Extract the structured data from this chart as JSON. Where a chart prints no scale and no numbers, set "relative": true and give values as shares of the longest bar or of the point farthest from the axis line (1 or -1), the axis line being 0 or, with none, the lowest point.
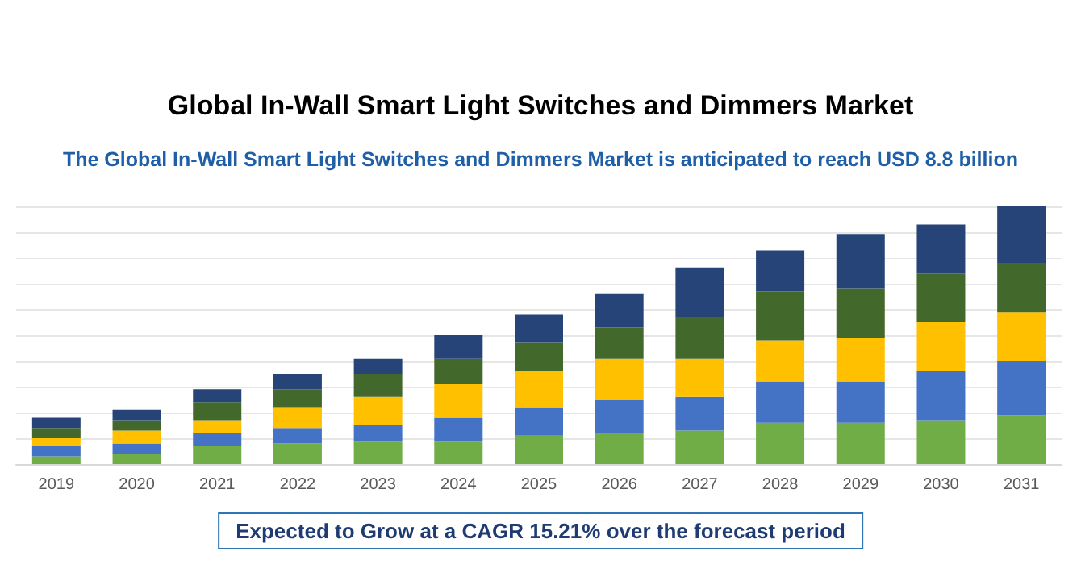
{
  "chart_data": {
    "type": "bar",
    "stacked": true,
    "relative": true,
    "grid": "y",
    "title": "Global In-Wall Smart Light Switches and Dimmers Market",
    "subtitle": "The Global In-Wall Smart Light Switches and Dimmers Market is anticipated to reach USD 8.8 billion",
    "annotations": [
      "Expected to Grow at a CAGR 15.21% over the forecast period"
    ],
    "categories": [
      "2019",
      "2020",
      "2021",
      "2022",
      "2023",
      "2024",
      "2025",
      "2026",
      "2027",
      "2028",
      "2029",
      "2030",
      "2031"
    ],
    "series": [
      {
        "color": "#70ad47",
        "values": [
          0.03,
          0.04,
          0.07,
          0.08,
          0.09,
          0.09,
          0.11,
          0.12,
          0.13,
          0.16,
          0.16,
          0.17,
          0.19
        ]
      },
      {
        "color": "#4472c4",
        "values": [
          0.04,
          0.04,
          0.05,
          0.06,
          0.06,
          0.09,
          0.11,
          0.13,
          0.13,
          0.16,
          0.16,
          0.19,
          0.21
        ]
      },
      {
        "color": "#ffc000",
        "values": [
          0.03,
          0.05,
          0.05,
          0.08,
          0.11,
          0.13,
          0.14,
          0.16,
          0.15,
          0.16,
          0.17,
          0.19,
          0.19
        ]
      },
      {
        "color": "#43682b",
        "values": [
          0.04,
          0.04,
          0.07,
          0.07,
          0.09,
          0.1,
          0.11,
          0.12,
          0.16,
          0.19,
          0.19,
          0.19,
          0.19
        ]
      },
      {
        "color": "#264478",
        "values": [
          0.04,
          0.04,
          0.05,
          0.06,
          0.06,
          0.09,
          0.11,
          0.13,
          0.19,
          0.16,
          0.21,
          0.19,
          0.22
        ]
      }
    ]
  }
}
